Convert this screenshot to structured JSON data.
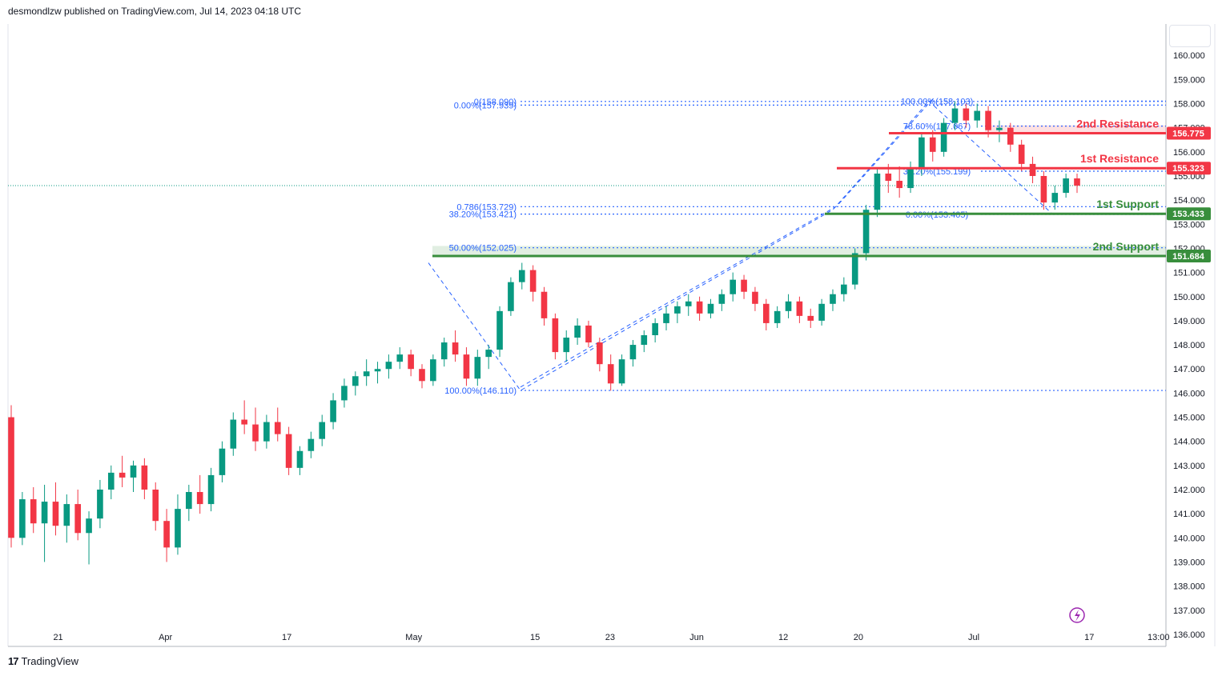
{
  "header": {
    "publisher": "desmondlzw published on TradingView.com, Jul 14, 2023 04:18 UTC"
  },
  "footer": {
    "logo": "17",
    "brand": "TradingView"
  },
  "icons": {
    "flash": "flash-icon",
    "scale_button": "scale-button"
  },
  "colors": {
    "support": "#388e3c",
    "resistance": "#f23645",
    "fib": "#2962ff",
    "up": "#089981",
    "down": "#f23645"
  },
  "chart_data": {
    "type": "candlestick",
    "instrument_hint": "",
    "y_axis": {
      "ylim": [
        135.5,
        161.3
      ],
      "ticks": [
        "136.000",
        "137.000",
        "138.000",
        "139.000",
        "140.000",
        "141.000",
        "142.000",
        "143.000",
        "144.000",
        "145.000",
        "146.000",
        "147.000",
        "148.000",
        "149.000",
        "150.000",
        "151.000",
        "152.000",
        "153.000",
        "154.000",
        "155.000",
        "156.000",
        "157.000",
        "158.000",
        "159.000",
        "160.000"
      ]
    },
    "x_axis": {
      "ticks": [
        "21",
        "Apr",
        "17",
        "May",
        "15",
        "23",
        "Jun",
        "12",
        "20",
        "Jul",
        "17",
        "13:00"
      ]
    },
    "levels": [
      {
        "name": "2nd Resistance",
        "price": 156.775,
        "tag": "156.775",
        "kind": "resistance"
      },
      {
        "name": "1st Resistance",
        "price": 155.323,
        "tag": "155.323",
        "kind": "resistance"
      },
      {
        "name": "1st Support",
        "price": 153.433,
        "tag": "153.433",
        "kind": "support"
      },
      {
        "name": "2nd Support",
        "price": 151.684,
        "tag": "151.684",
        "kind": "support"
      }
    ],
    "fib_left": [
      {
        "label": "0(158.090)",
        "price": 158.09
      },
      {
        "label": "0.00%(157.939)",
        "price": 157.939
      },
      {
        "label": "0.786(153.729)",
        "price": 153.729
      },
      {
        "label": "38.20%(153.421)",
        "price": 153.421
      },
      {
        "label": "50.00%(152.025)",
        "price": 152.025
      },
      {
        "label": "100.00%(146.110)",
        "price": 146.11
      }
    ],
    "fib_right": [
      {
        "label": "100.00%(158.103)",
        "price": 158.103
      },
      {
        "label": "78.60%(157.067)",
        "price": 157.067
      },
      {
        "label": "38.20%(155.199)",
        "price": 155.199
      },
      {
        "label": "0.00%(153.405)",
        "price": 153.405
      }
    ],
    "last_price": 154.6,
    "candles": [
      [
        145.0,
        145.5,
        139.6,
        140.0
      ],
      [
        140.0,
        141.9,
        139.7,
        141.6
      ],
      [
        141.6,
        142.1,
        140.2,
        140.6
      ],
      [
        140.6,
        142.2,
        139.0,
        141.5
      ],
      [
        141.5,
        142.3,
        140.1,
        140.5
      ],
      [
        140.5,
        141.8,
        139.8,
        141.4
      ],
      [
        141.4,
        142.0,
        139.9,
        140.2
      ],
      [
        140.2,
        141.1,
        138.9,
        140.8
      ],
      [
        140.8,
        142.4,
        140.4,
        142.0
      ],
      [
        142.0,
        143.0,
        141.6,
        142.7
      ],
      [
        142.7,
        143.4,
        142.1,
        142.5
      ],
      [
        142.5,
        143.2,
        141.9,
        143.0
      ],
      [
        143.0,
        143.3,
        141.6,
        142.0
      ],
      [
        142.0,
        142.3,
        140.3,
        140.7
      ],
      [
        140.7,
        141.2,
        139.0,
        139.6
      ],
      [
        139.6,
        141.8,
        139.3,
        141.2
      ],
      [
        141.2,
        142.2,
        140.7,
        141.9
      ],
      [
        141.9,
        142.6,
        141.0,
        141.4
      ],
      [
        141.4,
        142.9,
        141.1,
        142.6
      ],
      [
        142.6,
        144.0,
        142.3,
        143.7
      ],
      [
        143.7,
        145.2,
        143.4,
        144.9
      ],
      [
        144.9,
        145.7,
        144.3,
        144.7
      ],
      [
        144.7,
        145.4,
        143.6,
        144.0
      ],
      [
        144.0,
        145.1,
        143.7,
        144.8
      ],
      [
        144.8,
        145.4,
        144.0,
        144.3
      ],
      [
        144.3,
        144.6,
        142.6,
        142.9
      ],
      [
        142.9,
        143.8,
        142.6,
        143.6
      ],
      [
        143.6,
        144.4,
        143.3,
        144.1
      ],
      [
        144.1,
        145.1,
        143.8,
        144.8
      ],
      [
        144.8,
        146.0,
        144.5,
        145.7
      ],
      [
        145.7,
        146.6,
        145.4,
        146.3
      ],
      [
        146.3,
        146.9,
        145.9,
        146.7
      ],
      [
        146.7,
        147.4,
        146.3,
        146.9
      ],
      [
        146.9,
        147.3,
        146.4,
        147.0
      ],
      [
        147.0,
        147.6,
        146.6,
        147.3
      ],
      [
        147.3,
        147.9,
        147.0,
        147.6
      ],
      [
        147.6,
        147.8,
        146.7,
        147.0
      ],
      [
        147.0,
        147.2,
        146.2,
        146.5
      ],
      [
        146.5,
        147.6,
        146.3,
        147.4
      ],
      [
        147.4,
        148.3,
        147.1,
        148.1
      ],
      [
        148.1,
        148.6,
        147.3,
        147.6
      ],
      [
        147.6,
        147.9,
        146.3,
        146.6
      ],
      [
        146.6,
        147.8,
        146.3,
        147.5
      ],
      [
        147.5,
        148.0,
        147.0,
        147.8
      ],
      [
        147.8,
        149.6,
        147.5,
        149.4
      ],
      [
        149.4,
        150.8,
        149.2,
        150.6
      ],
      [
        150.6,
        151.4,
        150.3,
        151.1
      ],
      [
        151.1,
        151.3,
        149.8,
        150.2
      ],
      [
        150.2,
        150.4,
        148.8,
        149.1
      ],
      [
        149.1,
        149.3,
        147.4,
        147.7
      ],
      [
        147.7,
        148.6,
        147.3,
        148.3
      ],
      [
        148.3,
        149.1,
        148.0,
        148.8
      ],
      [
        148.8,
        149.0,
        147.9,
        148.1
      ],
      [
        148.1,
        148.3,
        146.9,
        147.2
      ],
      [
        147.2,
        147.6,
        146.1,
        146.4
      ],
      [
        146.4,
        147.6,
        146.3,
        147.4
      ],
      [
        147.4,
        148.2,
        147.1,
        148.0
      ],
      [
        148.0,
        148.6,
        147.7,
        148.4
      ],
      [
        148.4,
        149.1,
        148.1,
        148.9
      ],
      [
        148.9,
        149.6,
        148.6,
        149.3
      ],
      [
        149.3,
        149.8,
        148.9,
        149.6
      ],
      [
        149.6,
        150.1,
        149.2,
        149.8
      ],
      [
        149.8,
        150.0,
        149.0,
        149.3
      ],
      [
        149.3,
        149.9,
        149.1,
        149.7
      ],
      [
        149.7,
        150.3,
        149.4,
        150.1
      ],
      [
        150.1,
        151.0,
        149.8,
        150.7
      ],
      [
        150.7,
        150.9,
        149.9,
        150.2
      ],
      [
        150.2,
        150.4,
        149.4,
        149.7
      ],
      [
        149.7,
        149.9,
        148.6,
        148.9
      ],
      [
        148.9,
        149.6,
        148.7,
        149.4
      ],
      [
        149.4,
        150.1,
        149.1,
        149.8
      ],
      [
        149.8,
        150.0,
        148.9,
        149.2
      ],
      [
        149.2,
        149.5,
        148.7,
        149.0
      ],
      [
        149.0,
        149.9,
        148.8,
        149.7
      ],
      [
        149.7,
        150.3,
        149.4,
        150.1
      ],
      [
        150.1,
        150.8,
        149.8,
        150.5
      ],
      [
        150.5,
        152.0,
        150.3,
        151.8
      ],
      [
        151.8,
        153.8,
        151.5,
        153.6
      ],
      [
        153.6,
        155.3,
        153.3,
        155.1
      ],
      [
        155.1,
        155.5,
        154.3,
        154.8
      ],
      [
        154.8,
        155.4,
        154.1,
        154.5
      ],
      [
        154.5,
        155.6,
        154.3,
        155.3
      ],
      [
        155.3,
        156.8,
        155.0,
        156.6
      ],
      [
        156.6,
        156.9,
        155.6,
        156.0
      ],
      [
        156.0,
        157.4,
        155.8,
        157.2
      ],
      [
        157.2,
        158.1,
        156.9,
        157.8
      ],
      [
        157.8,
        158.0,
        157.0,
        157.3
      ],
      [
        157.3,
        158.0,
        157.0,
        157.7
      ],
      [
        157.7,
        157.9,
        156.6,
        156.9
      ],
      [
        156.9,
        157.3,
        156.4,
        157.0
      ],
      [
        157.0,
        157.2,
        156.0,
        156.3
      ],
      [
        156.3,
        156.5,
        155.2,
        155.5
      ],
      [
        155.5,
        155.8,
        154.7,
        155.0
      ],
      [
        155.0,
        155.2,
        153.6,
        153.9
      ],
      [
        153.9,
        154.6,
        153.6,
        154.3
      ],
      [
        154.3,
        155.1,
        154.1,
        154.9
      ],
      [
        154.9,
        155.1,
        154.3,
        154.6
      ]
    ]
  }
}
